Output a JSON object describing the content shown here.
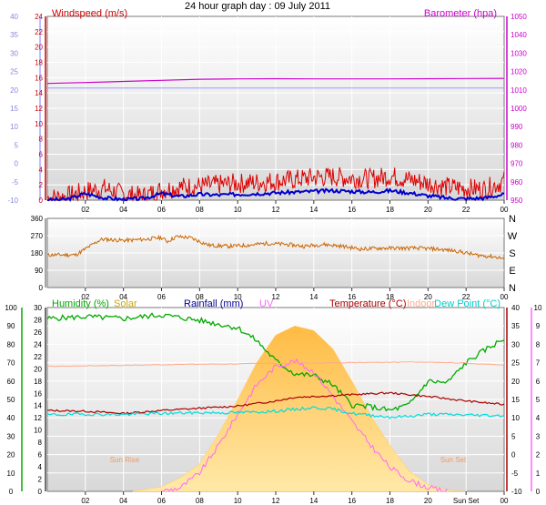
{
  "title": "24 hour graph day : 09 July 2011",
  "colors": {
    "wind": "#dd0000",
    "gust": "#0000cc",
    "baro": "#cc00cc",
    "dir": "#cc6600",
    "humidity": "#00aa00",
    "solar": "#ffc040",
    "rain": "#0000cc",
    "uv": "#ff66ff",
    "temp": "#aa0000",
    "indoor": "#ffaa88",
    "dew": "#00dddd",
    "grid": "#ffffff"
  },
  "chart_data": [
    {
      "type": "line",
      "name": "wind-baro",
      "x_ticks": [
        "02",
        "04",
        "06",
        "08",
        "10",
        "12",
        "14",
        "16",
        "18",
        "20",
        "22",
        "00"
      ],
      "left_axis": {
        "title": "Windspeed (m/s)",
        "ticks": [
          "24",
          "22",
          "20",
          "18",
          "16",
          "14",
          "12",
          "10",
          "8",
          "6",
          "4",
          "2",
          "0"
        ],
        "outer_ticks": [
          "40",
          "35",
          "30",
          "25",
          "20",
          "15",
          "10",
          "5",
          "0",
          "-5",
          "-10"
        ]
      },
      "right_axis": {
        "title": "Barometer (hpa)",
        "ticks": [
          "1050",
          "1040",
          "1030",
          "1020",
          "1010",
          "1000",
          "990",
          "980",
          "970",
          "960",
          "950"
        ]
      },
      "ylim_left": [
        0,
        25
      ],
      "ylim_right": [
        950,
        1050
      ],
      "series": [
        {
          "name": "Windspeed",
          "key": "wind",
          "x": [
            0,
            1,
            2,
            3,
            4,
            5,
            6,
            7,
            8,
            9,
            10,
            11,
            12,
            13,
            14,
            15,
            16,
            17,
            18,
            19,
            20,
            21,
            22,
            23,
            24
          ],
          "values": [
            0.3,
            0.5,
            1.2,
            1.6,
            0.8,
            0.5,
            1.4,
            1.8,
            1.9,
            2.1,
            2.3,
            2.4,
            2.6,
            2.8,
            3.1,
            3.2,
            3.0,
            2.9,
            3.3,
            2.8,
            2.3,
            1.8,
            1.6,
            1.5,
            2.6
          ]
        },
        {
          "name": "Gust",
          "key": "gust",
          "x": [
            0,
            1,
            2,
            3,
            4,
            5,
            6,
            7,
            8,
            9,
            10,
            11,
            12,
            13,
            14,
            15,
            16,
            17,
            18,
            19,
            20,
            21,
            22,
            23,
            24
          ],
          "values": [
            0.0,
            0.1,
            0.9,
            0.3,
            0.1,
            0.2,
            0.9,
            0.5,
            0.8,
            0.7,
            0.8,
            0.9,
            1.0,
            1.1,
            1.2,
            1.3,
            1.2,
            1.1,
            1.3,
            1.0,
            0.6,
            0.3,
            0.2,
            0.3,
            0.8
          ]
        },
        {
          "name": "Barometer",
          "key": "baro",
          "x": [
            0,
            2,
            4,
            6,
            8,
            10,
            12,
            14,
            16,
            18,
            20,
            22,
            24
          ],
          "values": [
            1013.5,
            1014.0,
            1014.6,
            1015.2,
            1015.8,
            1016.0,
            1016.1,
            1016.0,
            1016.0,
            1016.0,
            1016.1,
            1016.2,
            1016.3
          ]
        },
        {
          "name": "Reference",
          "key": "grid",
          "x": [
            0,
            24
          ],
          "values": [
            1011,
            1011
          ]
        }
      ]
    },
    {
      "type": "line",
      "name": "wind-direction",
      "x_ticks": [
        "02",
        "04",
        "06",
        "08",
        "10",
        "12",
        "14",
        "16",
        "18",
        "20",
        "22",
        "00"
      ],
      "left_axis": {
        "ticks": [
          "360",
          "270",
          "180",
          "90",
          "0"
        ]
      },
      "right_axis": {
        "ticks": [
          "N",
          "W",
          "S",
          "E",
          "N"
        ]
      },
      "ylim": [
        0,
        360
      ],
      "series": [
        {
          "name": "Direction",
          "key": "dir",
          "x": [
            0,
            1.5,
            2.8,
            3.2,
            4.0,
            5.0,
            6.0,
            6.3,
            6.8,
            7.5,
            8.5,
            9.5,
            10.5,
            11.5,
            12.5,
            13.5,
            14.5,
            15.5,
            16.5,
            17.5,
            18.5,
            19.5,
            20.5,
            21.5,
            22.5,
            23.5,
            24
          ],
          "values": [
            170,
            170,
            250,
            250,
            245,
            250,
            260,
            240,
            265,
            260,
            220,
            215,
            220,
            230,
            225,
            215,
            225,
            215,
            200,
            205,
            205,
            205,
            200,
            190,
            170,
            160,
            150
          ]
        }
      ]
    },
    {
      "type": "line",
      "name": "humidity-temp",
      "x_ticks": [
        "02",
        "04",
        "06",
        "08",
        "10",
        "12",
        "14",
        "16",
        "18",
        "20",
        "Sun Set",
        "00"
      ],
      "headers": [
        "Humidity (%)",
        "Solar",
        "Rainfall (mm)",
        "UV",
        "Temperature (°C)",
        "Indoor",
        "Dew Point (°C)"
      ],
      "annotations": [
        "Sun Rise",
        "Sun Set"
      ],
      "axes": {
        "humidity": [
          "100",
          "90",
          "80",
          "70",
          "60",
          "50",
          "40",
          "30",
          "20",
          "10",
          "0"
        ],
        "temperature": [
          "30",
          "28",
          "26",
          "24",
          "22",
          "20",
          "18",
          "16",
          "14",
          "12",
          "10",
          "8",
          "6",
          "4",
          "2",
          "0"
        ],
        "right_temp": [
          "40",
          "35",
          "30",
          "25",
          "20",
          "15",
          "10",
          "5",
          "0",
          "-5",
          "-10"
        ],
        "uv": [
          "10",
          "9",
          "8",
          "7",
          "6",
          "5",
          "4",
          "3",
          "2",
          "1",
          "0"
        ]
      },
      "series": [
        {
          "name": "Humidity",
          "key": "humidity",
          "x": [
            0,
            2,
            4,
            6,
            8,
            10,
            11,
            12,
            13,
            14,
            15,
            16,
            17,
            18,
            19,
            20,
            21,
            22,
            23,
            24
          ],
          "values": [
            94,
            95,
            94,
            96,
            93,
            89,
            82,
            71,
            64,
            63,
            58,
            47,
            46,
            44,
            47,
            60,
            59,
            70,
            77,
            83
          ]
        },
        {
          "name": "Solar",
          "key": "solar",
          "x": [
            4.5,
            6,
            7,
            8,
            9,
            10,
            11,
            12,
            13,
            14,
            15,
            16,
            17,
            18,
            19,
            20,
            21,
            22
          ],
          "values": [
            0,
            20,
            60,
            120,
            250,
            400,
            560,
            680,
            720,
            700,
            620,
            480,
            330,
            200,
            90,
            30,
            5,
            0
          ]
        },
        {
          "name": "UV",
          "key": "uv",
          "x": [
            6,
            7,
            8,
            9,
            10,
            11,
            12,
            13,
            14,
            15,
            16,
            17,
            18,
            19,
            20,
            21
          ],
          "values": [
            0,
            0.2,
            1.0,
            2.5,
            4.2,
            5.8,
            6.8,
            7.1,
            6.5,
            5.2,
            3.8,
            2.5,
            1.3,
            0.6,
            0.2,
            0
          ]
        },
        {
          "name": "Temperature",
          "key": "temp",
          "x": [
            0,
            2,
            4,
            6,
            8,
            10,
            12,
            13,
            14,
            16,
            18,
            20,
            22,
            24
          ],
          "values": [
            12.0,
            11.8,
            11.2,
            12.0,
            12.6,
            13.2,
            14.6,
            15.6,
            15.8,
            16.3,
            16.8,
            15.8,
            14.6,
            13.6
          ]
        },
        {
          "name": "Indoor",
          "key": "indoor",
          "x": [
            0,
            4,
            8,
            12,
            16,
            20,
            22,
            24
          ],
          "values": [
            24.0,
            24.3,
            24.6,
            24.8,
            25.0,
            25.2,
            24.9,
            24.3
          ]
        },
        {
          "name": "Dew Point",
          "key": "dew",
          "x": [
            0,
            2,
            4,
            6,
            8,
            10,
            12,
            14,
            15,
            16,
            18,
            19,
            20,
            22,
            24
          ],
          "values": [
            10.8,
            11.0,
            10.9,
            11.2,
            11.4,
            11.4,
            11.8,
            12.8,
            12.4,
            11.2,
            10.2,
            10.4,
            11.0,
            10.8,
            10.6
          ]
        }
      ]
    }
  ]
}
